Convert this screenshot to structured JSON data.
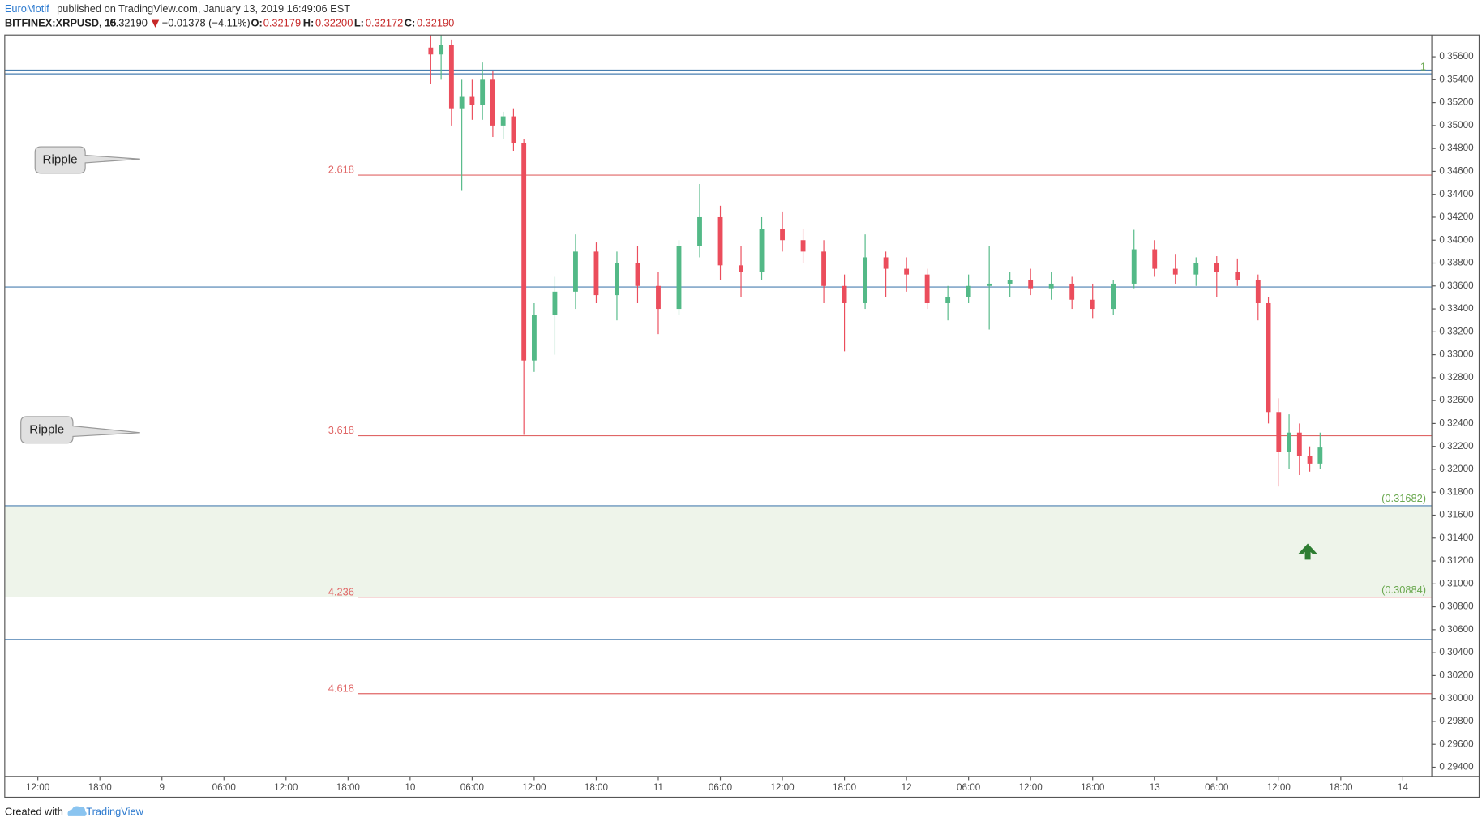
{
  "header": {
    "author": "EuroMotif",
    "published": "published on TradingView.com, January 13, 2019 16:49:06 EST",
    "symbol": "BITFINEX:XRPUSD, 15",
    "last": "0.32190",
    "change": "−0.01378 (−4.11%)",
    "open_label": "O:",
    "open": "0.32179",
    "high_label": "H:",
    "high": "0.32200",
    "low_label": "L:",
    "low": "0.32172",
    "close_label": "C:",
    "close": "0.32190"
  },
  "footer": {
    "created_with": "Created with",
    "brand": "TradingView"
  },
  "annotations": [
    {
      "text": "Ripple"
    },
    {
      "text": "Ripple"
    }
  ],
  "chart_data": {
    "type": "candlestick",
    "up_color": "#53b987",
    "down_color": "#eb4d5c",
    "xlim": [
      -3.2,
      134.8
    ],
    "ylim": [
      0.2932,
      0.3579
    ],
    "xticks": [
      {
        "value": 0,
        "label": "12:00"
      },
      {
        "value": 6,
        "label": "18:00"
      },
      {
        "value": 12,
        "label": "9"
      },
      {
        "value": 18,
        "label": "06:00"
      },
      {
        "value": 24,
        "label": "12:00"
      },
      {
        "value": 30,
        "label": "18:00"
      },
      {
        "value": 36,
        "label": "10"
      },
      {
        "value": 42,
        "label": "06:00"
      },
      {
        "value": 48,
        "label": "12:00"
      },
      {
        "value": 54,
        "label": "18:00"
      },
      {
        "value": 60,
        "label": "11"
      },
      {
        "value": 66,
        "label": "06:00"
      },
      {
        "value": 72,
        "label": "12:00"
      },
      {
        "value": 78,
        "label": "18:00"
      },
      {
        "value": 84,
        "label": "12"
      },
      {
        "value": 90,
        "label": "06:00"
      },
      {
        "value": 96,
        "label": "12:00"
      },
      {
        "value": 102,
        "label": "18:00"
      },
      {
        "value": 108,
        "label": "13"
      },
      {
        "value": 114,
        "label": "06:00"
      },
      {
        "value": 120,
        "label": "12:00"
      },
      {
        "value": 126,
        "label": "18:00"
      },
      {
        "value": 132,
        "label": "14"
      }
    ],
    "yticks": [
      {
        "value": 0.294,
        "label": "0.29400"
      },
      {
        "value": 0.296,
        "label": "0.29600"
      },
      {
        "value": 0.298,
        "label": "0.29800"
      },
      {
        "value": 0.3,
        "label": "0.30000"
      },
      {
        "value": 0.302,
        "label": "0.30200"
      },
      {
        "value": 0.304,
        "label": "0.30400"
      },
      {
        "value": 0.306,
        "label": "0.30600"
      },
      {
        "value": 0.308,
        "label": "0.30800"
      },
      {
        "value": 0.31,
        "label": "0.31000"
      },
      {
        "value": 0.312,
        "label": "0.31200"
      },
      {
        "value": 0.314,
        "label": "0.31400"
      },
      {
        "value": 0.316,
        "label": "0.31600"
      },
      {
        "value": 0.318,
        "label": "0.31800"
      },
      {
        "value": 0.32,
        "label": "0.32000"
      },
      {
        "value": 0.322,
        "label": "0.32200"
      },
      {
        "value": 0.324,
        "label": "0.32400"
      },
      {
        "value": 0.326,
        "label": "0.32600"
      },
      {
        "value": 0.328,
        "label": "0.32800"
      },
      {
        "value": 0.33,
        "label": "0.33000"
      },
      {
        "value": 0.332,
        "label": "0.33200"
      },
      {
        "value": 0.334,
        "label": "0.33400"
      },
      {
        "value": 0.336,
        "label": "0.33600"
      },
      {
        "value": 0.338,
        "label": "0.33800"
      },
      {
        "value": 0.34,
        "label": "0.34000"
      },
      {
        "value": 0.342,
        "label": "0.34200"
      },
      {
        "value": 0.344,
        "label": "0.34400"
      },
      {
        "value": 0.346,
        "label": "0.34600"
      },
      {
        "value": 0.348,
        "label": "0.34800"
      },
      {
        "value": 0.35,
        "label": "0.35000"
      },
      {
        "value": 0.352,
        "label": "0.35200"
      },
      {
        "value": 0.354,
        "label": "0.35400"
      },
      {
        "value": 0.356,
        "label": "0.35600"
      }
    ],
    "hlines": [
      {
        "value": 0.35484,
        "color": "#4a7fb0"
      },
      {
        "value": 0.35451,
        "color": "#4a7fb0"
      },
      {
        "value": 0.33591,
        "color": "#4a7fb0"
      },
      {
        "value": 0.31682,
        "color": "#4a7fb0"
      },
      {
        "value": 0.30515,
        "color": "#4a7fb0"
      }
    ],
    "zone": {
      "values": [
        0.30884,
        0.31682
      ],
      "value_labels": [
        "(0.30884)",
        "(0.31682)"
      ],
      "color": "#eef4ea",
      "label_color": "#6aa84f"
    },
    "fib_levels": [
      {
        "label": "1",
        "value": 0.35484,
        "color": "#6aa84f",
        "label_position": "right"
      },
      {
        "label": "2.618",
        "value": 0.34567,
        "color": "#e06666",
        "label_position": "left"
      },
      {
        "label": "3.618",
        "value": 0.32293,
        "color": "#e06666",
        "label_position": "left"
      },
      {
        "label": "4.236",
        "value": 0.30884,
        "color": "#e06666",
        "label_position": "left"
      },
      {
        "label": "4.618",
        "value": 0.30042,
        "color": "#e06666",
        "label_position": "left"
      }
    ],
    "x": [
      38,
      39,
      40,
      41,
      42,
      43,
      44,
      45,
      46,
      47,
      48,
      50,
      52,
      54,
      56,
      58,
      60,
      62,
      64,
      66,
      68,
      70,
      72,
      74,
      76,
      78,
      80,
      82,
      84,
      86,
      88,
      90,
      92,
      94,
      96,
      98,
      100,
      102,
      104,
      106,
      108,
      110,
      112,
      114,
      116,
      118,
      119,
      120,
      121,
      122,
      123,
      124
    ],
    "open": [
      0.3568,
      0.3562,
      0.357,
      0.3515,
      0.3525,
      0.3518,
      0.354,
      0.35,
      0.3508,
      0.3485,
      0.3295,
      0.3335,
      0.3355,
      0.339,
      0.3352,
      0.338,
      0.336,
      0.334,
      0.3395,
      0.342,
      0.3378,
      0.3372,
      0.341,
      0.34,
      0.339,
      0.336,
      0.3345,
      0.3385,
      0.3375,
      0.337,
      0.3345,
      0.335,
      0.336,
      0.3362,
      0.3365,
      0.3358,
      0.3362,
      0.3348,
      0.334,
      0.3362,
      0.3392,
      0.3375,
      0.337,
      0.338,
      0.3372,
      0.3365,
      0.3345,
      0.325,
      0.3215,
      0.3232,
      0.3212,
      0.3205
    ],
    "high": [
      0.3579,
      0.3579,
      0.3575,
      0.354,
      0.354,
      0.3555,
      0.3548,
      0.3512,
      0.3515,
      0.3488,
      0.3345,
      0.3368,
      0.3405,
      0.3398,
      0.339,
      0.3395,
      0.3372,
      0.34,
      0.3449,
      0.343,
      0.3395,
      0.342,
      0.3425,
      0.341,
      0.34,
      0.337,
      0.3405,
      0.339,
      0.3385,
      0.3375,
      0.336,
      0.337,
      0.3395,
      0.3372,
      0.3375,
      0.3372,
      0.3368,
      0.3362,
      0.3365,
      0.3409,
      0.34,
      0.3388,
      0.3385,
      0.3386,
      0.3384,
      0.337,
      0.335,
      0.3262,
      0.3248,
      0.324,
      0.322,
      0.3232
    ],
    "low": [
      0.3536,
      0.354,
      0.35,
      0.3443,
      0.3505,
      0.3505,
      0.349,
      0.3488,
      0.3478,
      0.323,
      0.3285,
      0.33,
      0.334,
      0.3345,
      0.333,
      0.3345,
      0.3318,
      0.3335,
      0.3385,
      0.3365,
      0.335,
      0.3365,
      0.339,
      0.338,
      0.3345,
      0.3303,
      0.334,
      0.335,
      0.3355,
      0.334,
      0.333,
      0.3345,
      0.3322,
      0.335,
      0.3352,
      0.3348,
      0.334,
      0.3332,
      0.3335,
      0.3358,
      0.3368,
      0.3362,
      0.336,
      0.335,
      0.336,
      0.333,
      0.324,
      0.3185,
      0.32,
      0.3195,
      0.3198,
      0.32
    ],
    "close": [
      0.3562,
      0.357,
      0.3515,
      0.3525,
      0.3518,
      0.354,
      0.35,
      0.3508,
      0.3485,
      0.3295,
      0.3335,
      0.3355,
      0.339,
      0.3352,
      0.338,
      0.336,
      0.334,
      0.3395,
      0.342,
      0.3378,
      0.3372,
      0.341,
      0.34,
      0.339,
      0.336,
      0.3345,
      0.3385,
      0.3375,
      0.337,
      0.3345,
      0.335,
      0.336,
      0.3362,
      0.3365,
      0.3358,
      0.3362,
      0.3348,
      0.334,
      0.3362,
      0.3392,
      0.3375,
      0.337,
      0.338,
      0.3372,
      0.3365,
      0.3345,
      0.325,
      0.3215,
      0.3232,
      0.3212,
      0.3205,
      0.3219
    ]
  }
}
